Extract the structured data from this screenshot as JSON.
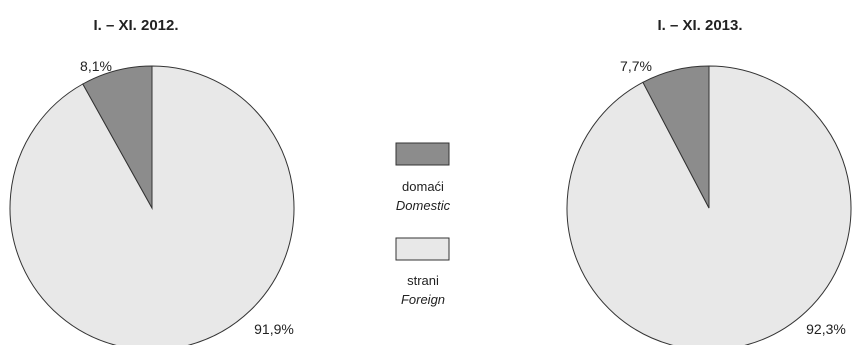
{
  "chart_data": [
    {
      "type": "pie",
      "title": "I. – XI. 2012.",
      "categories": [
        "domaći / Domestic",
        "strani / Foreign"
      ],
      "values": [
        8.1,
        91.9
      ],
      "labels": [
        "8,1%",
        "91,9%"
      ],
      "colors": [
        "#8c8c8c",
        "#e8e8e8"
      ]
    },
    {
      "type": "pie",
      "title": "I. – XI. 2013.",
      "categories": [
        "domaći / Domestic",
        "strani / Foreign"
      ],
      "values": [
        7.7,
        92.3
      ],
      "labels": [
        "7,7%",
        "92,3%"
      ],
      "colors": [
        "#8c8c8c",
        "#e8e8e8"
      ]
    }
  ],
  "legend": {
    "position": "center",
    "items": [
      {
        "label": "domaći",
        "label_en": "Domestic",
        "color": "#8c8c8c"
      },
      {
        "label": "strani",
        "label_en": "Foreign",
        "color": "#e8e8e8"
      }
    ]
  },
  "colors": {
    "outline": "#333333",
    "domestic": "#8c8c8c",
    "foreign": "#e8e8e8"
  }
}
